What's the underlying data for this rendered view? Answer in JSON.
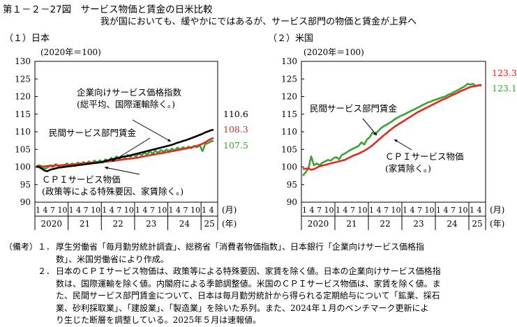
{
  "title": "第１－２－27図　サービス物価と賃金の日米比較",
  "subtitle": "我が国においても、緩やかにではあるが、サービス部門の物価と賃金が上昇へ",
  "colors": {
    "wage": "#3aa335",
    "cpi": "#e8271b",
    "corporate": "#000000"
  },
  "chart_data": [
    {
      "panel_title": "（１）日本",
      "unit_note": "(2020年＝100)",
      "type": "line",
      "ylim": [
        90,
        130
      ],
      "yticks": [
        "130",
        "125",
        "120",
        "115",
        "110",
        "105",
        "100",
        "95",
        "90"
      ],
      "x_month_ticks": "1 4 7 10",
      "x_last_month_ticks": "1 4",
      "x_month_unit": "(月)",
      "x_year_unit": "(年)",
      "years": [
        "2020",
        "21",
        "22",
        "23",
        "24",
        "25"
      ],
      "series": [
        {
          "name": "民間サービス部門賃金",
          "color": "#3aa335",
          "end_label": "107.5",
          "values": [
            99.8,
            100.5,
            100.2,
            99.5,
            99.8,
            100.5,
            100.0,
            100.8,
            100.3,
            99.8,
            100.2,
            101.0,
            100.5,
            101.0,
            100.3,
            101.2,
            100.6,
            101.4,
            100.9,
            101.6,
            101.0,
            101.8,
            101.3,
            101.9,
            101.2,
            102.2,
            101.6,
            102.6,
            102.0,
            103.0,
            102.3,
            103.1,
            102.6,
            103.4,
            102.9,
            103.6,
            103.0,
            103.8,
            103.3,
            104.0,
            103.6,
            104.4,
            103.8,
            104.6,
            104.0,
            104.8,
            104.3,
            105.0,
            104.5,
            105.2,
            104.7,
            105.5,
            105.0,
            105.6,
            105.2,
            105.8,
            105.3,
            106.0,
            105.6,
            106.2,
            104.5,
            106.5,
            106.8,
            107.2,
            107.5
          ]
        },
        {
          "name": "ＣＰＩサービス物価",
          "color": "#e8271b",
          "end_label": "108.3",
          "values": [
            100.0,
            100.0,
            100.1,
            100.2,
            100.3,
            100.3,
            100.4,
            100.4,
            100.5,
            100.5,
            100.6,
            100.6,
            100.6,
            100.7,
            100.8,
            100.9,
            101.0,
            101.0,
            101.1,
            101.1,
            101.2,
            101.3,
            101.3,
            101.4,
            101.4,
            101.5,
            101.6,
            101.7,
            101.8,
            101.9,
            102.0,
            102.1,
            102.2,
            102.3,
            102.4,
            102.5,
            102.6,
            102.7,
            102.9,
            103.0,
            103.2,
            103.3,
            103.5,
            103.6,
            103.8,
            103.9,
            104.0,
            104.2,
            104.3,
            104.5,
            104.6,
            104.8,
            104.9,
            105.1,
            105.2,
            105.4,
            105.6,
            105.8,
            106.0,
            106.3,
            106.6,
            107.0,
            107.5,
            107.9,
            108.3
          ]
        },
        {
          "name": "企業向けサービス価格指数",
          "color": "#000000",
          "end_label": "110.6",
          "values": [
            100.3,
            100.0,
            99.5,
            99.0,
            98.8,
            99.2,
            99.4,
            99.6,
            99.8,
            99.9,
            100.0,
            100.1,
            100.2,
            100.3,
            100.4,
            100.5,
            100.6,
            100.7,
            100.8,
            100.9,
            101.0,
            101.1,
            101.2,
            101.3,
            101.5,
            101.7,
            101.9,
            102.1,
            102.3,
            102.5,
            102.6,
            102.8,
            103.0,
            103.1,
            103.3,
            103.5,
            103.7,
            103.9,
            104.1,
            104.3,
            104.5,
            104.7,
            104.9,
            105.1,
            105.3,
            105.5,
            105.7,
            105.9,
            106.1,
            106.3,
            106.6,
            106.9,
            107.1,
            107.4,
            107.6,
            107.9,
            108.2,
            108.5,
            108.8,
            109.1,
            109.4,
            109.8,
            110.1,
            110.4,
            110.6
          ]
        }
      ],
      "annotations": {
        "corporate": [
          "企業向けサービス価格指数",
          "(総平均、国際運輸除く。)"
        ],
        "wage": [
          "民間サービス部門賃金"
        ],
        "cpi": [
          "ＣＰＩサービス物価",
          "(政策等による特殊要因、家賃除く。)"
        ]
      }
    },
    {
      "panel_title": "（２）米国",
      "unit_note": "(2020年＝100)",
      "type": "line",
      "ylim": [
        90,
        130
      ],
      "yticks": [
        "130",
        "125",
        "120",
        "115",
        "110",
        "105",
        "100",
        "95",
        "90"
      ],
      "x_month_ticks": "1 4 7 10",
      "x_last_month_ticks": "1 4",
      "x_month_unit": "(月)",
      "x_year_unit": "(年)",
      "years": [
        "2020",
        "21",
        "22",
        "23",
        "24",
        "25"
      ],
      "series": [
        {
          "name": "民間サービス部門賃金",
          "color": "#3aa335",
          "end_label": "123.1",
          "values": [
            97.5,
            98.5,
            99.5,
            103.0,
            100.5,
            101.0,
            100.5,
            101.2,
            101.6,
            102.0,
            101.8,
            102.5,
            102.8,
            102.2,
            103.4,
            103.8,
            104.3,
            104.8,
            105.2,
            105.6,
            106.0,
            107.0,
            106.4,
            107.8,
            108.5,
            109.8,
            109.2,
            110.2,
            111.0,
            111.6,
            112.0,
            112.5,
            113.0,
            113.6,
            114.0,
            114.5,
            114.8,
            115.2,
            115.6,
            116.0,
            116.4,
            116.8,
            117.2,
            117.6,
            118.0,
            118.4,
            118.6,
            119.0,
            119.2,
            119.5,
            119.8,
            120.0,
            120.5,
            120.8,
            121.2,
            121.6,
            122.0,
            122.5,
            122.9,
            123.6,
            123.4,
            123.6,
            123.0,
            123.2,
            123.1
          ]
        },
        {
          "name": "ＣＰＩサービス物価",
          "color": "#e8271b",
          "end_label": "123.3",
          "values": [
            99.5,
            99.5,
            99.6,
            99.2,
            99.4,
            99.8,
            100.2,
            100.4,
            100.6,
            100.8,
            101.0,
            101.2,
            101.4,
            101.6,
            101.8,
            102.0,
            102.4,
            102.8,
            103.2,
            103.5,
            103.8,
            104.2,
            104.6,
            105.1,
            105.6,
            106.2,
            106.9,
            107.6,
            108.3,
            109.0,
            109.6,
            110.3,
            110.9,
            111.5,
            112.0,
            112.5,
            113.0,
            113.5,
            114.0,
            114.5,
            115.0,
            115.5,
            115.9,
            116.3,
            116.7,
            117.1,
            117.5,
            117.9,
            118.3,
            118.7,
            119.1,
            119.4,
            119.8,
            120.2,
            120.6,
            120.9,
            121.3,
            121.7,
            122.0,
            122.4,
            122.7,
            122.9,
            123.0,
            123.2,
            123.3
          ]
        }
      ],
      "annotations": {
        "wage": [
          "民間サービス部門賃金"
        ],
        "cpi": [
          "ＣＰＩサービス物価",
          "(家賃除く。)"
        ]
      }
    }
  ],
  "notes": {
    "label": "（備考）",
    "items": [
      {
        "num": "１．",
        "lines": [
          "厚生労働省「毎月勤労統計調査」、総務省「消費者物価指数」、日本銀行「企業向けサービス価格指",
          "数」、米国労働省により作成。"
        ]
      },
      {
        "num": "２．",
        "lines": [
          "日本のＣＰＩサービス物価は、政策等による特殊要因、家賃を除く値。日本の企業向けサービス価格指",
          "数は、国際運輸を除く値。内閣府による季節調整値。米国のＣＰＩサービス物価は、家賃を除く値。ま",
          "た、民間サービス部門賃金について、日本は毎月勤労統計から得られる定期給与について「鉱業、採石",
          "業、砂利採取業」、「建設業」、「製造業」を除いた系列。また、2024年１月のベンチマーク更新によ",
          "り生じた断層を調整している。2025年５月は速報値。"
        ]
      }
    ]
  }
}
